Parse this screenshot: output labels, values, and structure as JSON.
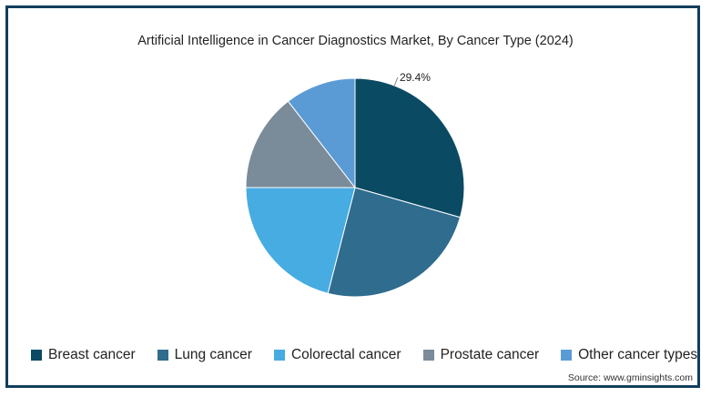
{
  "chart_data": {
    "type": "pie",
    "title": "Artificial Intelligence in Cancer Diagnostics Market, By Cancer Type (2024)",
    "categories": [
      "Breast cancer",
      "Lung cancer",
      "Colorectal cancer",
      "Prostate cancer",
      "Other cancer types"
    ],
    "values": [
      29.4,
      24.6,
      21.0,
      14.5,
      10.5
    ],
    "colors": [
      "#0b4a63",
      "#2f6c8e",
      "#46ace2",
      "#7a8b9a",
      "#5b9bd5"
    ],
    "data_labels": [
      "29.4%",
      "",
      "",
      "",
      ""
    ],
    "legend_position": "bottom",
    "source": "Source: www.gminsights.com"
  }
}
